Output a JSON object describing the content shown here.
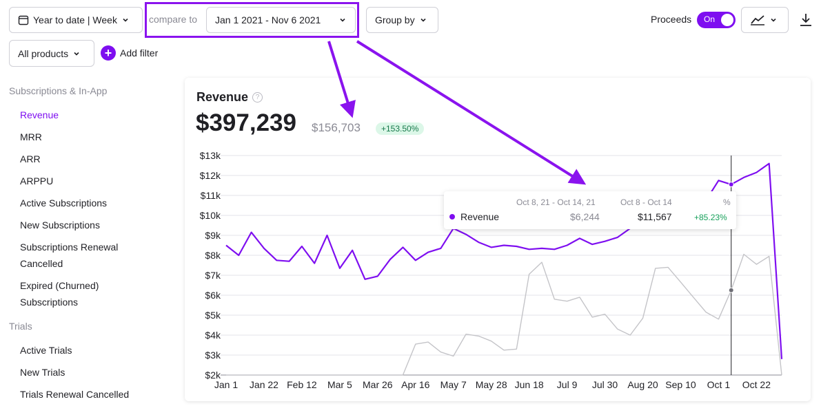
{
  "toolbar": {
    "date_range": "Year to date | Week",
    "compare_label": "compare to",
    "compare_range": "Jan 1 2021 - Nov 6 2021",
    "group_by": "Group by",
    "proceeds_label": "Proceeds",
    "proceeds_toggle": "On",
    "products": "All products",
    "add_filter": "Add filter"
  },
  "sidebar": {
    "section1": "Subscriptions & In-App",
    "items1": [
      "Revenue",
      "MRR",
      "ARR",
      "ARPPU",
      "Active Subscriptions",
      "New Subscriptions",
      "Subscriptions Renewal Cancelled",
      "Expired (Churned) Subscriptions"
    ],
    "section2": "Trials",
    "items2": [
      "Active Trials",
      "New Trials",
      "Trials Renewal Cancelled"
    ]
  },
  "card": {
    "title": "Revenue",
    "help": "?",
    "value": "$397,239",
    "compare_value": "$156,703",
    "change": "+153.50%"
  },
  "tooltip": {
    "header_prev": "Oct 8, 21 - Oct 14, 21",
    "header_curr": "Oct 8 - Oct 14",
    "header_pct": "%",
    "series": "Revenue",
    "prev": "$6,244",
    "curr": "$11,567",
    "pct": "+85.23%"
  },
  "colors": {
    "accent": "#7e0ef0",
    "compare_line": "#c4c4c8",
    "annotation": "#8a13ee"
  },
  "chart_data": {
    "type": "line",
    "title": "Revenue",
    "x_ticks": [
      "Jan 1",
      "Jan 22",
      "Feb 12",
      "Mar 5",
      "Mar 26",
      "Apr 16",
      "May 7",
      "May 28",
      "Jun 18",
      "Jul 9",
      "Jul 30",
      "Aug 20",
      "Sep 10",
      "Oct 1",
      "Oct 22"
    ],
    "y_ticks": [
      "$2k",
      "$3k",
      "$4k",
      "$5k",
      "$6k",
      "$7k",
      "$8k",
      "$9k",
      "$10k",
      "$11k",
      "$12k",
      "$13k"
    ],
    "ylim": [
      2000,
      13000
    ],
    "grid": true,
    "series": [
      {
        "name": "Revenue",
        "color": "#7e0ef0",
        "values": [
          8500,
          8000,
          9150,
          8350,
          7750,
          7700,
          8450,
          7600,
          9000,
          7350,
          8250,
          6800,
          6950,
          7800,
          8400,
          7750,
          8150,
          8350,
          9350,
          9050,
          8650,
          8400,
          8500,
          8450,
          8300,
          8350,
          8300,
          8500,
          8850,
          8550,
          8700,
          8900,
          9350,
          9400,
          9450,
          9700,
          10150,
          10500,
          10750,
          11750,
          11550,
          11900,
          12150,
          12600,
          2800
        ]
      },
      {
        "name": "",
        "color": "#c4c4c8",
        "values": [
          2000,
          2000,
          2000,
          2000,
          2000,
          2000,
          2000,
          2000,
          2000,
          2000,
          2000,
          2000,
          2000,
          2000,
          2000,
          3550,
          3650,
          3150,
          2950,
          4050,
          3950,
          3700,
          3250,
          3300,
          7050,
          7650,
          5800,
          5700,
          5900,
          4900,
          5050,
          4300,
          4000,
          4850,
          7350,
          7400,
          6650,
          5900,
          5150,
          4800,
          6250,
          8050,
          7550,
          7950,
          2000
        ]
      }
    ]
  }
}
